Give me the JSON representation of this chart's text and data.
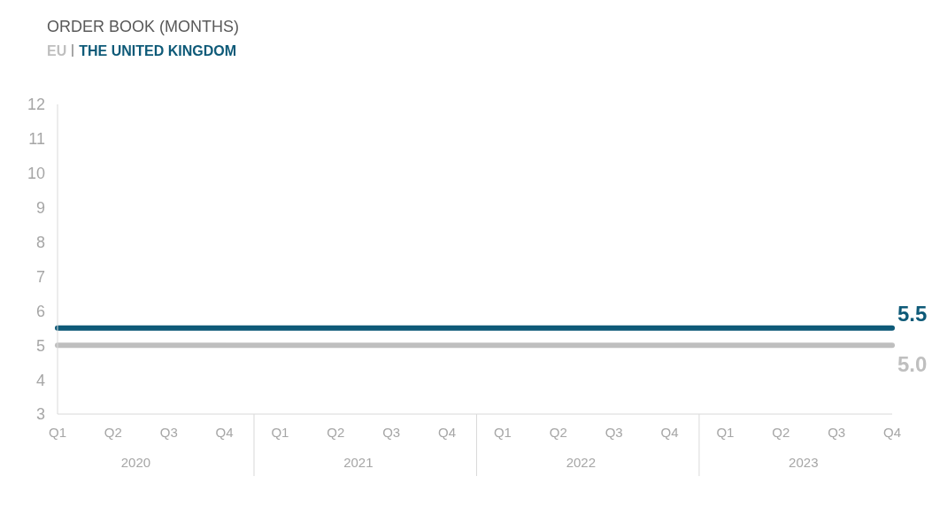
{
  "chart_data": {
    "type": "line",
    "title": "ORDER BOOK (MONTHS)",
    "categories": [
      "Q1",
      "Q2",
      "Q3",
      "Q4",
      "Q1",
      "Q2",
      "Q3",
      "Q4",
      "Q1",
      "Q2",
      "Q3",
      "Q4",
      "Q1",
      "Q2",
      "Q3",
      "Q4"
    ],
    "annotations": [
      "2020",
      "2021",
      "2022",
      "2023"
    ],
    "series": [
      {
        "name": "EU",
        "color": "#bfbfbf",
        "values": [
          5,
          5,
          5,
          5,
          5,
          5,
          5,
          5,
          5,
          5,
          5,
          5,
          5,
          5,
          5,
          5
        ],
        "value_labels": [
          null,
          null,
          null,
          null,
          null,
          null,
          null,
          null,
          null,
          null,
          null,
          null,
          null,
          null,
          null,
          "5.0"
        ]
      },
      {
        "name": "THE UNITED KINGDOM",
        "color": "#0e5a78",
        "values": [
          5.5,
          5.5,
          5.5,
          5.5,
          5.5,
          5.5,
          5.5,
          5.5,
          5.5,
          5.5,
          5.5,
          5.5,
          5.5,
          5.5,
          5.5,
          5.5
        ],
        "value_labels": [
          null,
          null,
          null,
          null,
          null,
          null,
          null,
          null,
          null,
          null,
          null,
          null,
          null,
          null,
          null,
          "5.5"
        ]
      }
    ],
    "ylim": [
      3,
      12
    ],
    "yticks": [
      3,
      4,
      5,
      6,
      7,
      8,
      9,
      10,
      11,
      12
    ],
    "grid": false,
    "legend": "top left",
    "marker": "none",
    "line_style": "solid"
  }
}
